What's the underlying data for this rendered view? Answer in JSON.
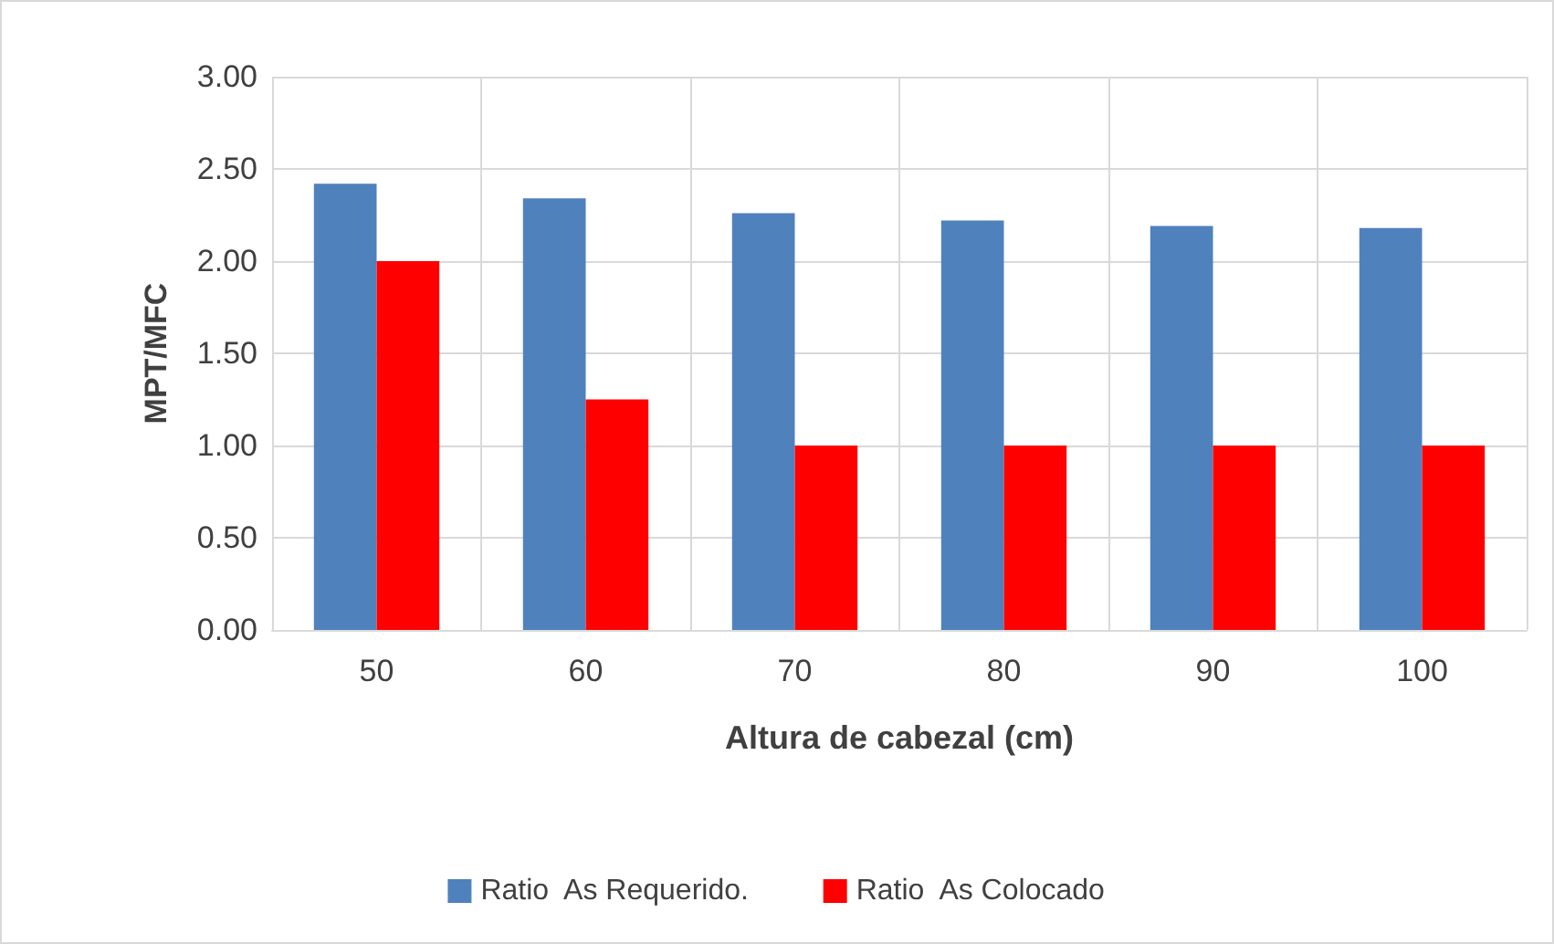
{
  "chart_data": {
    "type": "bar",
    "xlabel": "Altura de cabezal (cm)",
    "ylabel": "MPT/MFC",
    "categories": [
      "50",
      "60",
      "70",
      "80",
      "90",
      "100"
    ],
    "series": [
      {
        "name": "Ratio  As Requerido.",
        "color": "#4f81bd",
        "values": [
          2.42,
          2.34,
          2.26,
          2.22,
          2.19,
          2.18
        ]
      },
      {
        "name": "Ratio  As Colocado",
        "color": "#ff0000",
        "values": [
          2.0,
          1.25,
          1.0,
          1.0,
          1.0,
          1.0
        ]
      }
    ],
    "ylim": [
      0,
      3
    ],
    "yticks": [
      {
        "value": 0,
        "label": "0.00"
      },
      {
        "value": 0.5,
        "label": "0.50"
      },
      {
        "value": 1,
        "label": "1.00"
      },
      {
        "value": 1.5,
        "label": "1.50"
      },
      {
        "value": 2,
        "label": "2.00"
      },
      {
        "value": 2.5,
        "label": "2.50"
      },
      {
        "value": 3,
        "label": "3.00"
      }
    ],
    "grid": true,
    "legend": "bottom"
  }
}
